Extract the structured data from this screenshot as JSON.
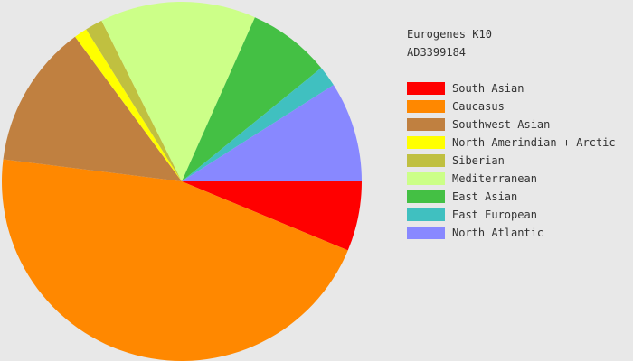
{
  "chart_data": {
    "type": "pie",
    "title": "Eurogenes K10",
    "subtitle": "AD3399184",
    "legend_position": "right",
    "start_angle_deg": 0,
    "direction": "clockwise",
    "slices": [
      {
        "label": "South Asian",
        "value": 6.4,
        "color": "#ff0000"
      },
      {
        "label": "Caucasus",
        "value": 46.6,
        "color": "#ff8800"
      },
      {
        "label": "Southwest Asian",
        "value": 13.2,
        "color": "#c08040"
      },
      {
        "label": "North Amerindian + Arctic",
        "value": 1.2,
        "color": "#ffff00"
      },
      {
        "label": "Siberian",
        "value": 1.6,
        "color": "#c0c040"
      },
      {
        "label": "Mediterranean",
        "value": 14.3,
        "color": "#ccff88"
      },
      {
        "label": "East Asian",
        "value": 7.6,
        "color": "#44c044"
      },
      {
        "label": "East European",
        "value": 1.9,
        "color": "#40c0c0"
      },
      {
        "label": "North Atlantic",
        "value": 9.2,
        "color": "#8888ff"
      }
    ]
  }
}
